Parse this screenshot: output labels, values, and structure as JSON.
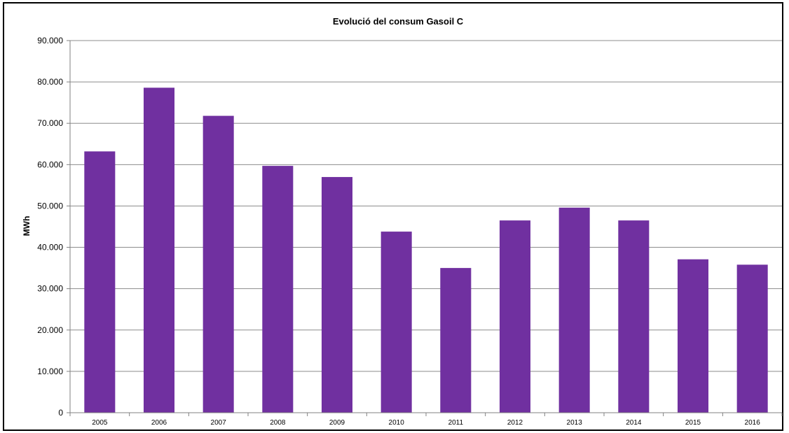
{
  "chart_data": {
    "type": "bar",
    "title": "Evolució del consum Gasoil C",
    "xlabel": "",
    "ylabel": "MWh",
    "categories": [
      "2005",
      "2006",
      "2007",
      "2008",
      "2009",
      "2010",
      "2011",
      "2012",
      "2013",
      "2014",
      "2015",
      "2016"
    ],
    "values": [
      63200,
      78600,
      71800,
      59700,
      57000,
      43800,
      35000,
      46500,
      49600,
      46500,
      37100,
      35800
    ],
    "ylim": [
      0,
      90000
    ],
    "yticks": [
      0,
      10000,
      20000,
      30000,
      40000,
      50000,
      60000,
      70000,
      80000,
      90000
    ],
    "ytick_labels": [
      "0",
      "10.000",
      "20.000",
      "30.000",
      "40.000",
      "50.000",
      "60.000",
      "70.000",
      "80.000",
      "90.000"
    ],
    "grid": true,
    "legend": "none",
    "bar_color": "#7030a0",
    "gridline_color": "#8c8c8c"
  }
}
